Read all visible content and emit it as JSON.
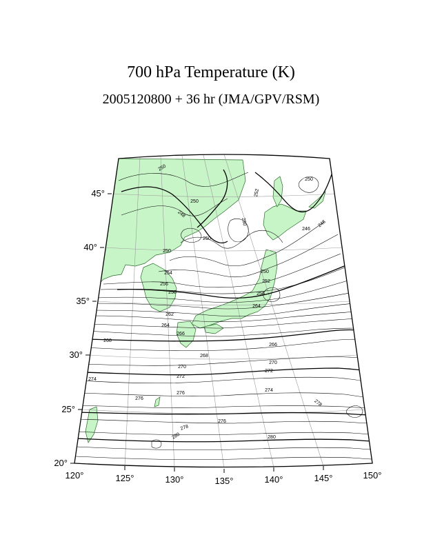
{
  "title": "700 hPa Temperature (K)",
  "subtitle": "2005120800 + 36 hr (JMA/GPV/RSM)",
  "colors": {
    "land": "#c8f5c8",
    "coast": "#2a6a2a",
    "contour": "#000000",
    "grid": "#9a9a9a",
    "frame": "#000000"
  },
  "lon_ticks": [
    "120°",
    "125°",
    "130°",
    "135°",
    "140°",
    "145°",
    "150°"
  ],
  "lat_ticks": [
    "20°",
    "25°",
    "30°",
    "35°",
    "40°",
    "45°"
  ],
  "contour_labels": [
    "250",
    "250",
    "250",
    "252",
    "250",
    "248",
    "246",
    "248",
    "250",
    "250",
    "250",
    "252",
    "254",
    "256",
    "256",
    "258",
    "262",
    "264",
    "264",
    "266",
    "266",
    "268",
    "268",
    "270",
    "270",
    "272",
    "272",
    "274",
    "274",
    "276",
    "276",
    "276",
    "278",
    "278",
    "280",
    "280"
  ]
}
